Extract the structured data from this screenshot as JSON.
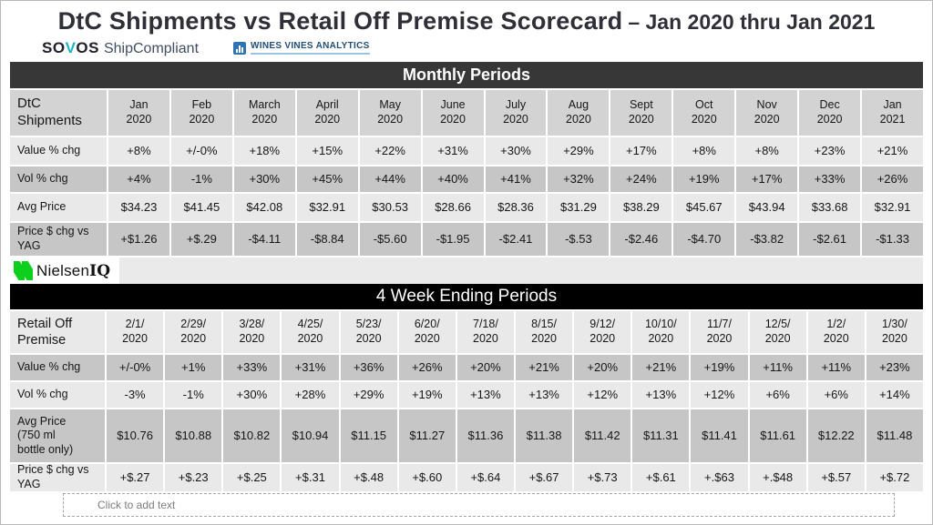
{
  "title": {
    "main": "DtC Shipments vs Retail Off Premise Scorecard",
    "suffix": "– Jan 2020 thru Jan 2021"
  },
  "logos": {
    "sovos_pre": "SO",
    "sovos_v": "V",
    "sovos_post": "OS",
    "sovos_suffix": "ShipCompliant",
    "wva_text": "WINES VINES ANALYTICS",
    "nielsen_pre": "Nielsen",
    "nielsen_iq": "IQ"
  },
  "colors": {
    "monthly_band_bg": "#373737",
    "weekly_band_bg": "#000000",
    "header1_cell_bg": "#d3d3d3",
    "header2_cell_bg": "#e9e9e9",
    "row_light_bg": "#e9e9e9",
    "row_dark_bg": "#c6c6c6",
    "sovos_accent": "#1fb5c4",
    "wva_blue": "#2e74b5",
    "nielsen_green": "#0ccf1e"
  },
  "monthly": {
    "band_label": "Monthly Periods",
    "corner_label": "DtC\nShipments",
    "columns": [
      "Jan\n2020",
      "Feb\n2020",
      "March\n2020",
      "April\n2020",
      "May\n2020",
      "June\n2020",
      "July\n2020",
      "Aug\n2020",
      "Sept\n2020",
      "Oct\n2020",
      "Nov\n2020",
      "Dec\n2020",
      "Jan\n2021"
    ],
    "shade_start": "light",
    "rows": [
      {
        "label": "Value % chg",
        "values": [
          "+8%",
          "+/-0%",
          "+18%",
          "+15%",
          "+22%",
          "+31%",
          "+30%",
          "+29%",
          "+17%",
          "+8%",
          "+8%",
          "+23%",
          "+21%"
        ]
      },
      {
        "label": "Vol % chg",
        "values": [
          "+4%",
          "-1%",
          "+30%",
          "+45%",
          "+44%",
          "+40%",
          "+41%",
          "+32%",
          "+24%",
          "+19%",
          "+17%",
          "+33%",
          "+26%"
        ]
      },
      {
        "label": "Avg Price",
        "values": [
          "$34.23",
          "$41.45",
          "$42.08",
          "$32.91",
          "$30.53",
          "$28.66",
          "$28.36",
          "$31.29",
          "$38.29",
          "$45.67",
          "$43.94",
          "$33.68",
          "$32.91"
        ]
      },
      {
        "label": "Price $ chg vs\nYAG",
        "values": [
          "+$1.26",
          "+$.29",
          "-$4.11",
          "-$8.84",
          "-$5.60",
          "-$1.95",
          "-$2.41",
          "-$.53",
          "-$2.46",
          "-$4.70",
          "-$3.82",
          "-$2.61",
          "-$1.33"
        ]
      }
    ]
  },
  "weekly": {
    "band_label": "4 Week Ending Periods",
    "corner_label": "Retail Off\nPremise",
    "columns": [
      "2/1/\n2020",
      "2/29/\n2020",
      "3/28/\n2020",
      "4/25/\n2020",
      "5/23/\n2020",
      "6/20/\n2020",
      "7/18/\n2020",
      "8/15/\n2020",
      "9/12/\n2020",
      "10/10/\n2020",
      "11/7/\n2020",
      "12/5/\n2020",
      "1/2/\n2020",
      "1/30/\n2020"
    ],
    "shade_start": "dark",
    "rows": [
      {
        "label": "Value % chg",
        "values": [
          "+/-0%",
          "+1%",
          "+33%",
          "+31%",
          "+36%",
          "+26%",
          "+20%",
          "+21%",
          "+20%",
          "+21%",
          "+19%",
          "+11%",
          "+11%",
          "+23%"
        ]
      },
      {
        "label": "Vol % chg",
        "values": [
          "-3%",
          "-1%",
          "+30%",
          "+28%",
          "+29%",
          "+19%",
          "+13%",
          "+13%",
          "+12%",
          "+13%",
          "+12%",
          "+6%",
          "+6%",
          "+14%"
        ]
      },
      {
        "label": "Avg Price\n(750 ml\nbottle only)",
        "values": [
          "$10.76",
          "$10.88",
          "$10.82",
          "$10.94",
          "$11.15",
          "$11.27",
          "$11.36",
          "$11.38",
          "$11.42",
          "$11.31",
          "$11.41",
          "$11.61",
          "$12.22",
          "$11.48"
        ]
      },
      {
        "label": "Price $ chg vs\nYAG",
        "values": [
          "+$.27",
          "+$.23",
          "+$.25",
          "+$.31",
          "+$.48",
          "+$.60",
          "+$.64",
          "+$.67",
          "+$.73",
          "+$.61",
          "+.$63",
          "+.$48",
          "+$.57",
          "+$.72"
        ]
      }
    ]
  },
  "placeholder": {
    "text": "Click to add text"
  }
}
